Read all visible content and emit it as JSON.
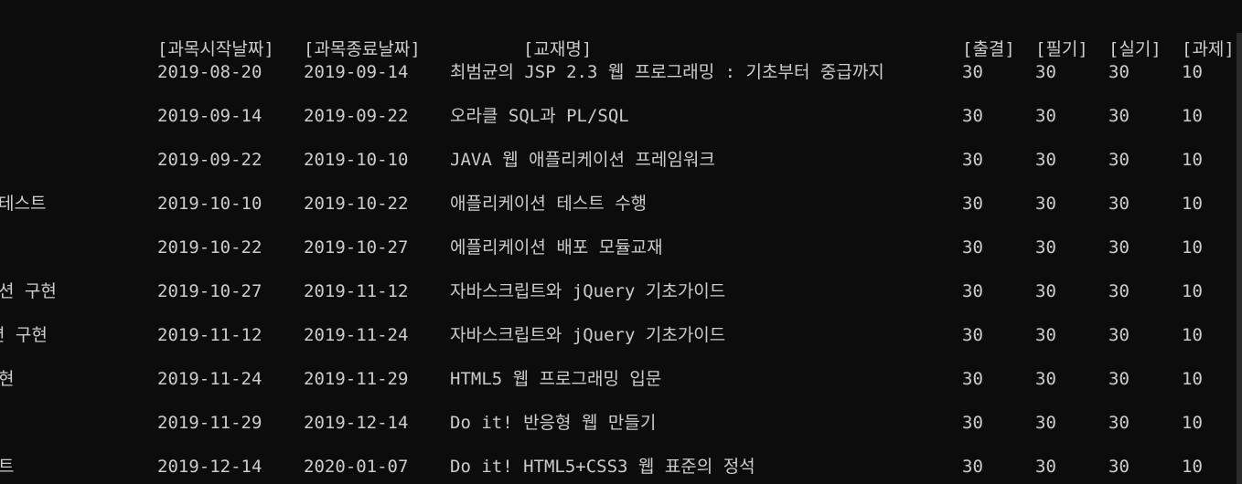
{
  "header": {
    "start_date": "[과목시작날짜]",
    "end_date": "[과목종료날짜]",
    "book": "[교재명]",
    "attendance": "[출결]",
    "written": "[필기]",
    "practical": "[실기]",
    "assignment": "[과제]"
  },
  "rows": [
    {
      "left": "",
      "start": "2019-08-20",
      "end": "2019-09-14",
      "book": "최범균의 JSP 2.3 웹 프로그래밍 : 기초부터 중급까지",
      "attendance": "30",
      "written": "30",
      "practical": "30",
      "assignment": "10"
    },
    {
      "left": "",
      "start": "2019-09-14",
      "end": "2019-09-22",
      "book": "오라클 SQL과 PL/SQL",
      "attendance": "30",
      "written": "30",
      "practical": "30",
      "assignment": "10"
    },
    {
      "left": "",
      "start": "2019-09-22",
      "end": "2019-10-10",
      "book": "JAVA 웹 애플리케이션 프레임워크",
      "attendance": "30",
      "written": "30",
      "practical": "30",
      "assignment": "10"
    },
    {
      "left": "테스트",
      "start": "2019-10-10",
      "end": "2019-10-22",
      "book": "애플리케이션 테스트 수행",
      "attendance": "30",
      "written": "30",
      "practical": "30",
      "assignment": "10"
    },
    {
      "left": "",
      "start": "2019-10-22",
      "end": "2019-10-27",
      "book": "에플리케이션 배포 모듈교재",
      "attendance": "30",
      "written": "30",
      "practical": "30",
      "assignment": "10"
    },
    {
      "left": "션 구현",
      "start": "2019-10-27",
      "end": "2019-11-12",
      "book": "자바스크립트와 jQuery 기초가이드",
      "attendance": "30",
      "written": "30",
      "practical": "30",
      "assignment": "10"
    },
    {
      "left": "션 구현",
      "start": "2019-11-12",
      "end": "2019-11-24",
      "book": "자바스크립트와 jQuery 기초가이드",
      "attendance": "30",
      "written": "30",
      "practical": "30",
      "assignment": "10"
    },
    {
      "left": "현",
      "start": "2019-11-24",
      "end": "2019-11-29",
      "book": "HTML5 웹 프로그래밍 입문",
      "attendance": "30",
      "written": "30",
      "practical": "30",
      "assignment": "10"
    },
    {
      "left": "",
      "start": "2019-11-29",
      "end": "2019-12-14",
      "book": "Do it! 반응형 웹 만들기",
      "attendance": "30",
      "written": "30",
      "practical": "30",
      "assignment": "10"
    },
    {
      "left": "트",
      "start": "2019-12-14",
      "end": "2020-01-07",
      "book": "Do it! HTML5+CSS3 웹 표준의 정석",
      "attendance": "30",
      "written": "30",
      "practical": "30",
      "assignment": "10"
    }
  ]
}
